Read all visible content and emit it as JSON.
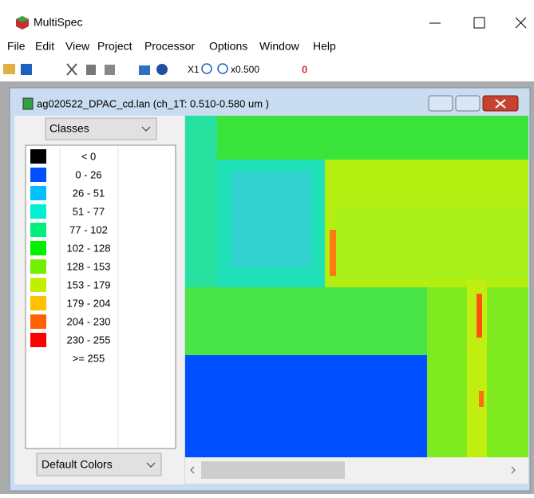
{
  "app": {
    "title": "MultiSpec"
  },
  "menu": [
    "File",
    "Edit",
    "View",
    "Project",
    "Processor",
    "Options",
    "Window",
    "Help"
  ],
  "toolbar": {
    "zoom_one": "X1",
    "zoom_value": "x0.500",
    "overlay": "0"
  },
  "document": {
    "title": "ag020522_DPAC_cd.lan (ch_1T: 0.510-0.580 um )",
    "class_menu": "Classes",
    "palette_menu": "Default Colors",
    "legend": [
      {
        "label": "<  0",
        "color": "#000000"
      },
      {
        "label": "0 -  26",
        "color": "#0050ff"
      },
      {
        "label": "26 -  51",
        "color": "#00c0ff"
      },
      {
        "label": "51 -  77",
        "color": "#00f0d0"
      },
      {
        "label": "77 - 102",
        "color": "#00f080"
      },
      {
        "label": "102 - 128",
        "color": "#00f000"
      },
      {
        "label": "128 - 153",
        "color": "#70f000"
      },
      {
        "label": "153 - 179",
        "color": "#c0f000"
      },
      {
        "label": "179 - 204",
        "color": "#ffc000"
      },
      {
        "label": "204 - 230",
        "color": "#ff6000"
      },
      {
        "label": "230 - 255",
        "color": "#ff0000"
      },
      {
        "label": ">= 255",
        "color": null
      }
    ]
  }
}
